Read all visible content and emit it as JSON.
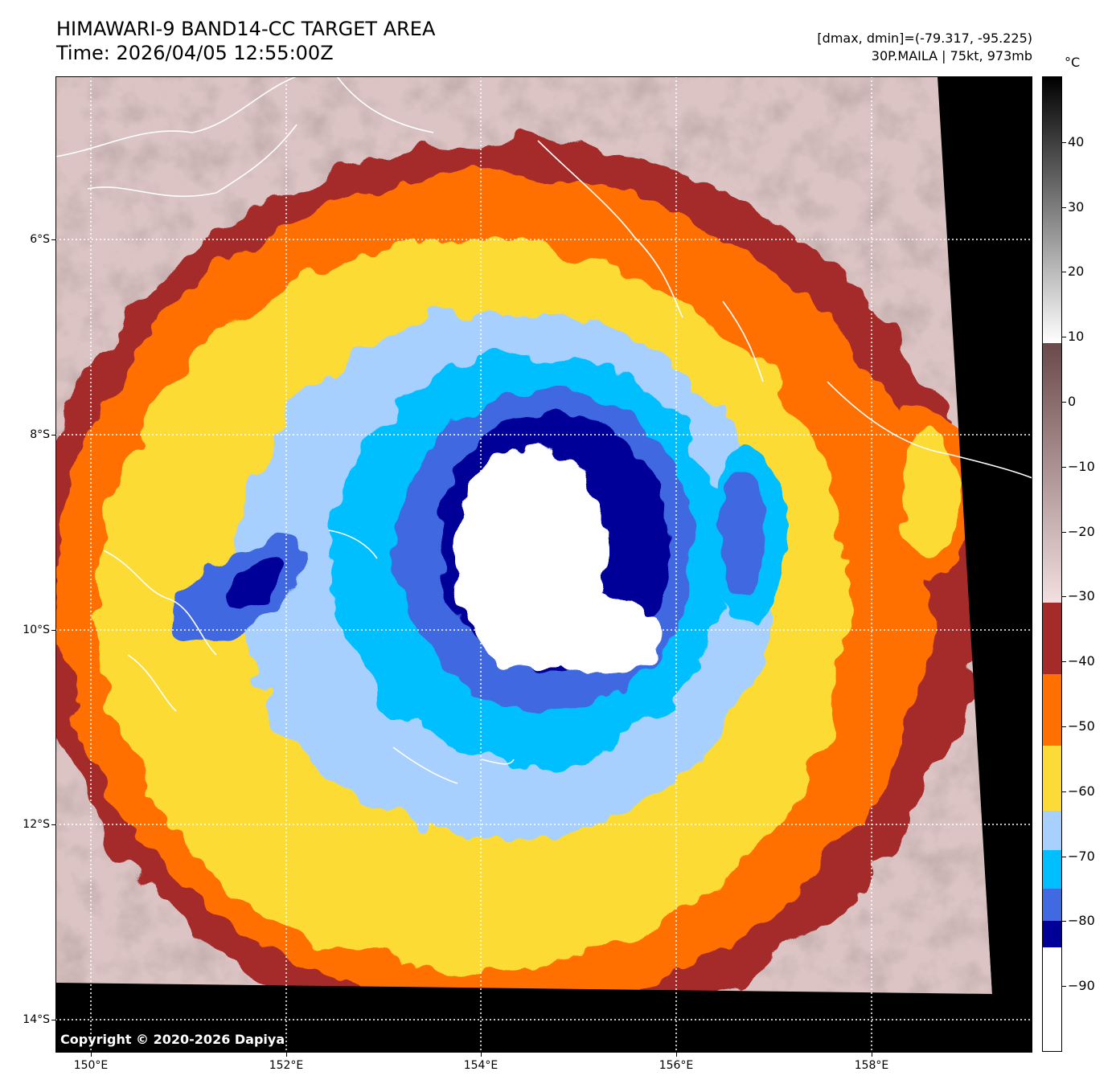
{
  "header": {
    "title_line1": "HIMAWARI-9 BAND14-CC TARGET AREA",
    "title_line2": "Time: 2026/04/05 12:55:00Z",
    "range_text": "[dmax, dmin]=(-79.317, -95.225)",
    "storm_text": "30P.MAILA | 75kt, 973mb"
  },
  "map": {
    "lat_labels": [
      "6°S",
      "8°S",
      "10°S",
      "12°S",
      "14°S"
    ],
    "lon_labels": [
      "150°E",
      "152°E",
      "154°E",
      "156°E",
      "158°E"
    ],
    "copyright": "Copyright © 2020-2026 Dapiya"
  },
  "colorbar": {
    "unit": "°C",
    "labels": [
      "40",
      "30",
      "20",
      "10",
      "0",
      "−10",
      "−20",
      "−30",
      "−40",
      "−50",
      "−60",
      "−70",
      "−80",
      "−90"
    ],
    "bands": [
      {
        "from": -100,
        "to": -84,
        "color": "#ffffff"
      },
      {
        "from": -84,
        "to": -80,
        "color": "#000099"
      },
      {
        "from": -80,
        "to": -75,
        "color": "#4169e1"
      },
      {
        "from": -75,
        "to": -69,
        "color": "#00bfff"
      },
      {
        "from": -69,
        "to": -63,
        "color": "#a8d0ff"
      },
      {
        "from": -63,
        "to": -53,
        "color": "#fddb36"
      },
      {
        "from": -53,
        "to": -42,
        "color": "#ff7000"
      },
      {
        "from": -42,
        "to": -31,
        "color": "#a52a2a"
      },
      {
        "from": -31,
        "to": 9,
        "gradient": [
          "#f2dfe0",
          "#6a4a4a"
        ]
      },
      {
        "from": 9,
        "to": 50,
        "gradient": [
          "#ffffff",
          "#000000"
        ]
      }
    ]
  },
  "colors": {
    "coast": "#ffffff",
    "grid": "#ffffff",
    "nodata": "#000000"
  }
}
